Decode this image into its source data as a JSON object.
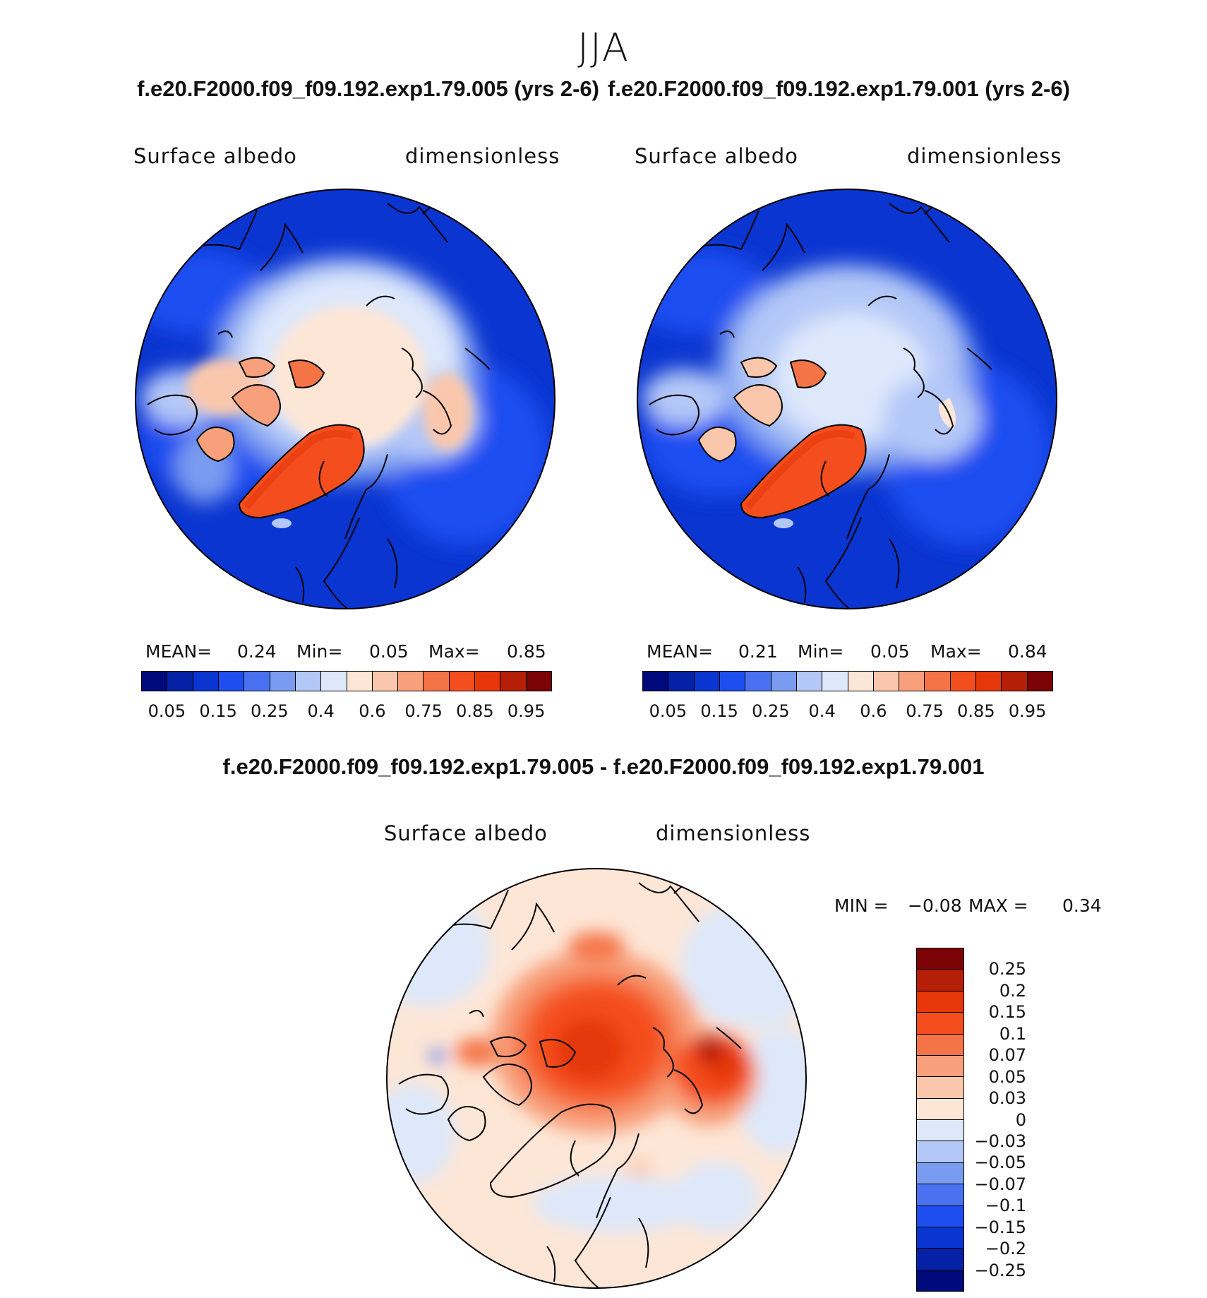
{
  "season": "JJA",
  "case1_title": "f.e20.F2000.f09_f09.192.exp1.79.005 (yrs 2-6)",
  "case2_title": "f.e20.F2000.f09_f09.192.exp1.79.001 (yrs 2-6)",
  "diff_title": "f.e20.F2000.f09_f09.192.exp1.79.005 - f.e20.F2000.f09_f09.192.exp1.79.001",
  "panels": [
    {
      "variable": "Surface albedo",
      "units": "dimensionless",
      "mean_label": "MEAN=",
      "mean": "0.24",
      "min_label": "Min=",
      "min": "0.05",
      "max_label": "Max=",
      "max": "0.85"
    },
    {
      "variable": "Surface albedo",
      "units": "dimensionless",
      "mean_label": "MEAN=",
      "mean": "0.21",
      "min_label": "Min=",
      "min": "0.05",
      "max_label": "Max=",
      "max": "0.84"
    }
  ],
  "diff_panel": {
    "variable": "Surface albedo",
    "units": "dimensionless",
    "min_label": "MIN =",
    "min": "−0.08",
    "max_label": "MAX =",
    "max": "0.34"
  },
  "abs_colorbar": {
    "colors": [
      "#000a7a",
      "#0522a6",
      "#0a35d0",
      "#1e4ef0",
      "#4a72f0",
      "#7a9cf0",
      "#b4c8f8",
      "#dde8fb",
      "#fde6d6",
      "#fbc7ac",
      "#f8a07c",
      "#f57447",
      "#f44e1f",
      "#e53709",
      "#b51e07",
      "#7c0305"
    ],
    "ticks": [
      "0.05",
      "0.15",
      "0.25",
      "0.4",
      "0.6",
      "0.75",
      "0.85",
      "0.95"
    ]
  },
  "diff_colorbar": {
    "colors": [
      "#7c0305",
      "#b51e07",
      "#e53709",
      "#f44e1f",
      "#f57447",
      "#f8a07c",
      "#fbc7ac",
      "#fde6d6",
      "#dde8fb",
      "#b4c8f8",
      "#7a9cf0",
      "#4a72f0",
      "#1e4ef0",
      "#0a35d0",
      "#0522a6",
      "#000a7a"
    ],
    "ticks": [
      "0.25",
      "0.2",
      "0.15",
      "0.1",
      "0.07",
      "0.05",
      "0.03",
      "0",
      "−0.03",
      "−0.05",
      "−0.07",
      "−0.1",
      "−0.15",
      "−0.2",
      "−0.25"
    ]
  }
}
